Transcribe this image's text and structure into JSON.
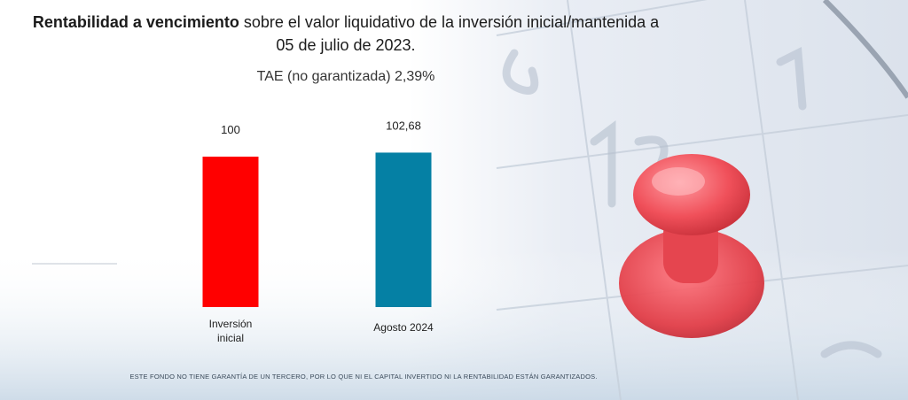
{
  "title_bold": "Rentabilidad a vencimiento",
  "title_rest": " sobre el valor liquidativo de la inversión inicial/mantenida a 05 de julio de 2023.",
  "subtitle": "TAE (no garantizada) 2,39%",
  "footnote": "ESTE FONDO NO TIENE GARANTÍA DE UN TERCERO, POR LO QUE NI EL CAPITAL INVERTIDO NI LA RENTABILIDAD ESTÁN GARANTIZADOS.",
  "chart_data": {
    "type": "bar",
    "categories": [
      "Inversión inicial",
      "Agosto 2024"
    ],
    "values": [
      100,
      102.68
    ],
    "value_labels": [
      "100",
      "102,68"
    ],
    "colors": [
      "#ff0000",
      "#0580a4"
    ],
    "axis_visible": false,
    "grid": false
  }
}
